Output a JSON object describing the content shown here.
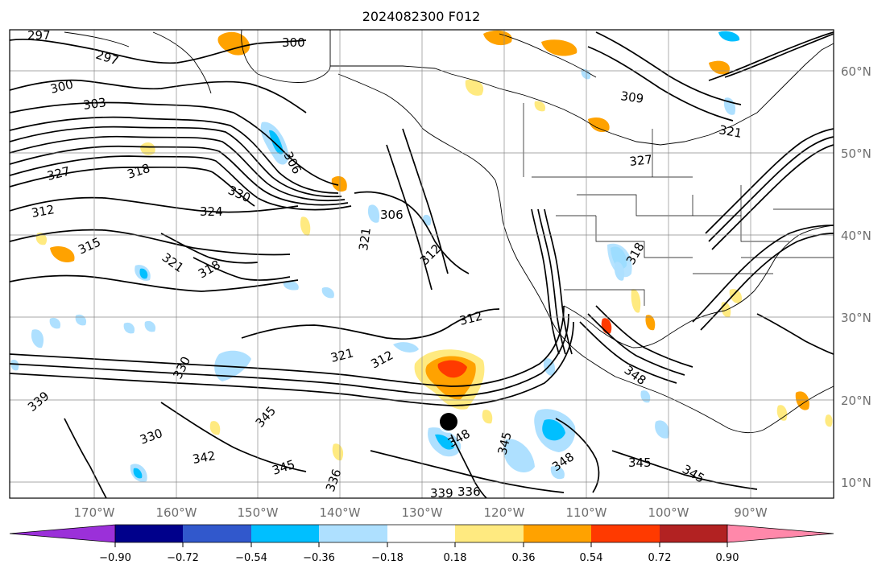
{
  "title": "2024082300 F012",
  "lat_labels": [
    "60°N",
    "50°N",
    "40°N",
    "30°N",
    "20°N",
    "10°N"
  ],
  "lon_labels": [
    "170°W",
    "160°W",
    "150°W",
    "140°W",
    "130°W",
    "120°W",
    "110°W",
    "100°W",
    "90°W"
  ],
  "colorbar": {
    "ticks": [
      "−0.90",
      "−0.72",
      "−0.54",
      "−0.36",
      "−0.18",
      "0.18",
      "0.36",
      "0.54",
      "0.72",
      "0.90"
    ],
    "colors": [
      "#9b30d9",
      "#00008b",
      "#3158cc",
      "#00bfff",
      "#aee0ff",
      "#ffffff",
      "#ffea80",
      "#ffa200",
      "#ff3a00",
      "#b22222",
      "#ff88aa"
    ]
  },
  "contour_labels": [
    "297",
    "297",
    "300",
    "300",
    "303",
    "306",
    "306",
    "309",
    "312",
    "312",
    "312",
    "312",
    "315",
    "318",
    "318",
    "318",
    "321",
    "321",
    "321",
    "321",
    "324",
    "327",
    "327",
    "330",
    "330",
    "330",
    "336",
    "336",
    "339",
    "339",
    "342",
    "345",
    "345",
    "345",
    "345",
    "345",
    "348",
    "348",
    "348"
  ],
  "colors": {
    "contour": "#000000",
    "grid": "#8a8a8a",
    "tick_label": "#6e6e6e",
    "positive_shade": "#ffea80",
    "negative_shade": "#aee0ff",
    "storm_marker": "#000000"
  },
  "marker": {
    "icon": "storm-center-icon"
  }
}
